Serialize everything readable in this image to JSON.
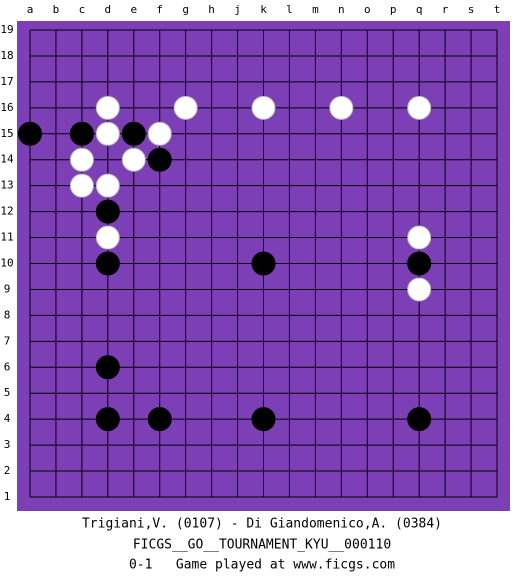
{
  "board": {
    "columns": [
      "a",
      "b",
      "c",
      "d",
      "e",
      "f",
      "g",
      "h",
      "j",
      "k",
      "l",
      "m",
      "n",
      "o",
      "p",
      "q",
      "r",
      "s",
      "t"
    ],
    "rows": [
      19,
      18,
      17,
      16,
      15,
      14,
      13,
      12,
      11,
      10,
      9,
      8,
      7,
      6,
      5,
      4,
      3,
      2,
      1
    ],
    "stones": [
      {
        "color": "white",
        "col": "d",
        "row": 16
      },
      {
        "color": "white",
        "col": "g",
        "row": 16
      },
      {
        "color": "white",
        "col": "k",
        "row": 16
      },
      {
        "color": "white",
        "col": "n",
        "row": 16
      },
      {
        "color": "white",
        "col": "q",
        "row": 16
      },
      {
        "color": "black",
        "col": "a",
        "row": 15
      },
      {
        "color": "black",
        "col": "c",
        "row": 15
      },
      {
        "color": "white",
        "col": "d",
        "row": 15
      },
      {
        "color": "black",
        "col": "e",
        "row": 15
      },
      {
        "color": "white",
        "col": "f",
        "row": 15
      },
      {
        "color": "white",
        "col": "c",
        "row": 14
      },
      {
        "color": "white",
        "col": "e",
        "row": 14
      },
      {
        "color": "black",
        "col": "f",
        "row": 14
      },
      {
        "color": "white",
        "col": "c",
        "row": 13
      },
      {
        "color": "white",
        "col": "d",
        "row": 13
      },
      {
        "color": "black",
        "col": "d",
        "row": 12
      },
      {
        "color": "white",
        "col": "d",
        "row": 11
      },
      {
        "color": "white",
        "col": "q",
        "row": 11
      },
      {
        "color": "black",
        "col": "d",
        "row": 10
      },
      {
        "color": "black",
        "col": "k",
        "row": 10
      },
      {
        "color": "black",
        "col": "q",
        "row": 10
      },
      {
        "color": "white",
        "col": "q",
        "row": 9
      },
      {
        "color": "black",
        "col": "d",
        "row": 6
      },
      {
        "color": "black",
        "col": "d",
        "row": 4
      },
      {
        "color": "black",
        "col": "f",
        "row": 4
      },
      {
        "color": "black",
        "col": "k",
        "row": 4
      },
      {
        "color": "black",
        "col": "q",
        "row": 4
      }
    ]
  },
  "caption": {
    "players": "Trigiani,V. (0107) - Di Giandomenico,A. (0384)",
    "event": "FICGS__GO__TOURNAMENT_KYU__000110",
    "result": "0-1   Game played at www.ficgs.com"
  }
}
